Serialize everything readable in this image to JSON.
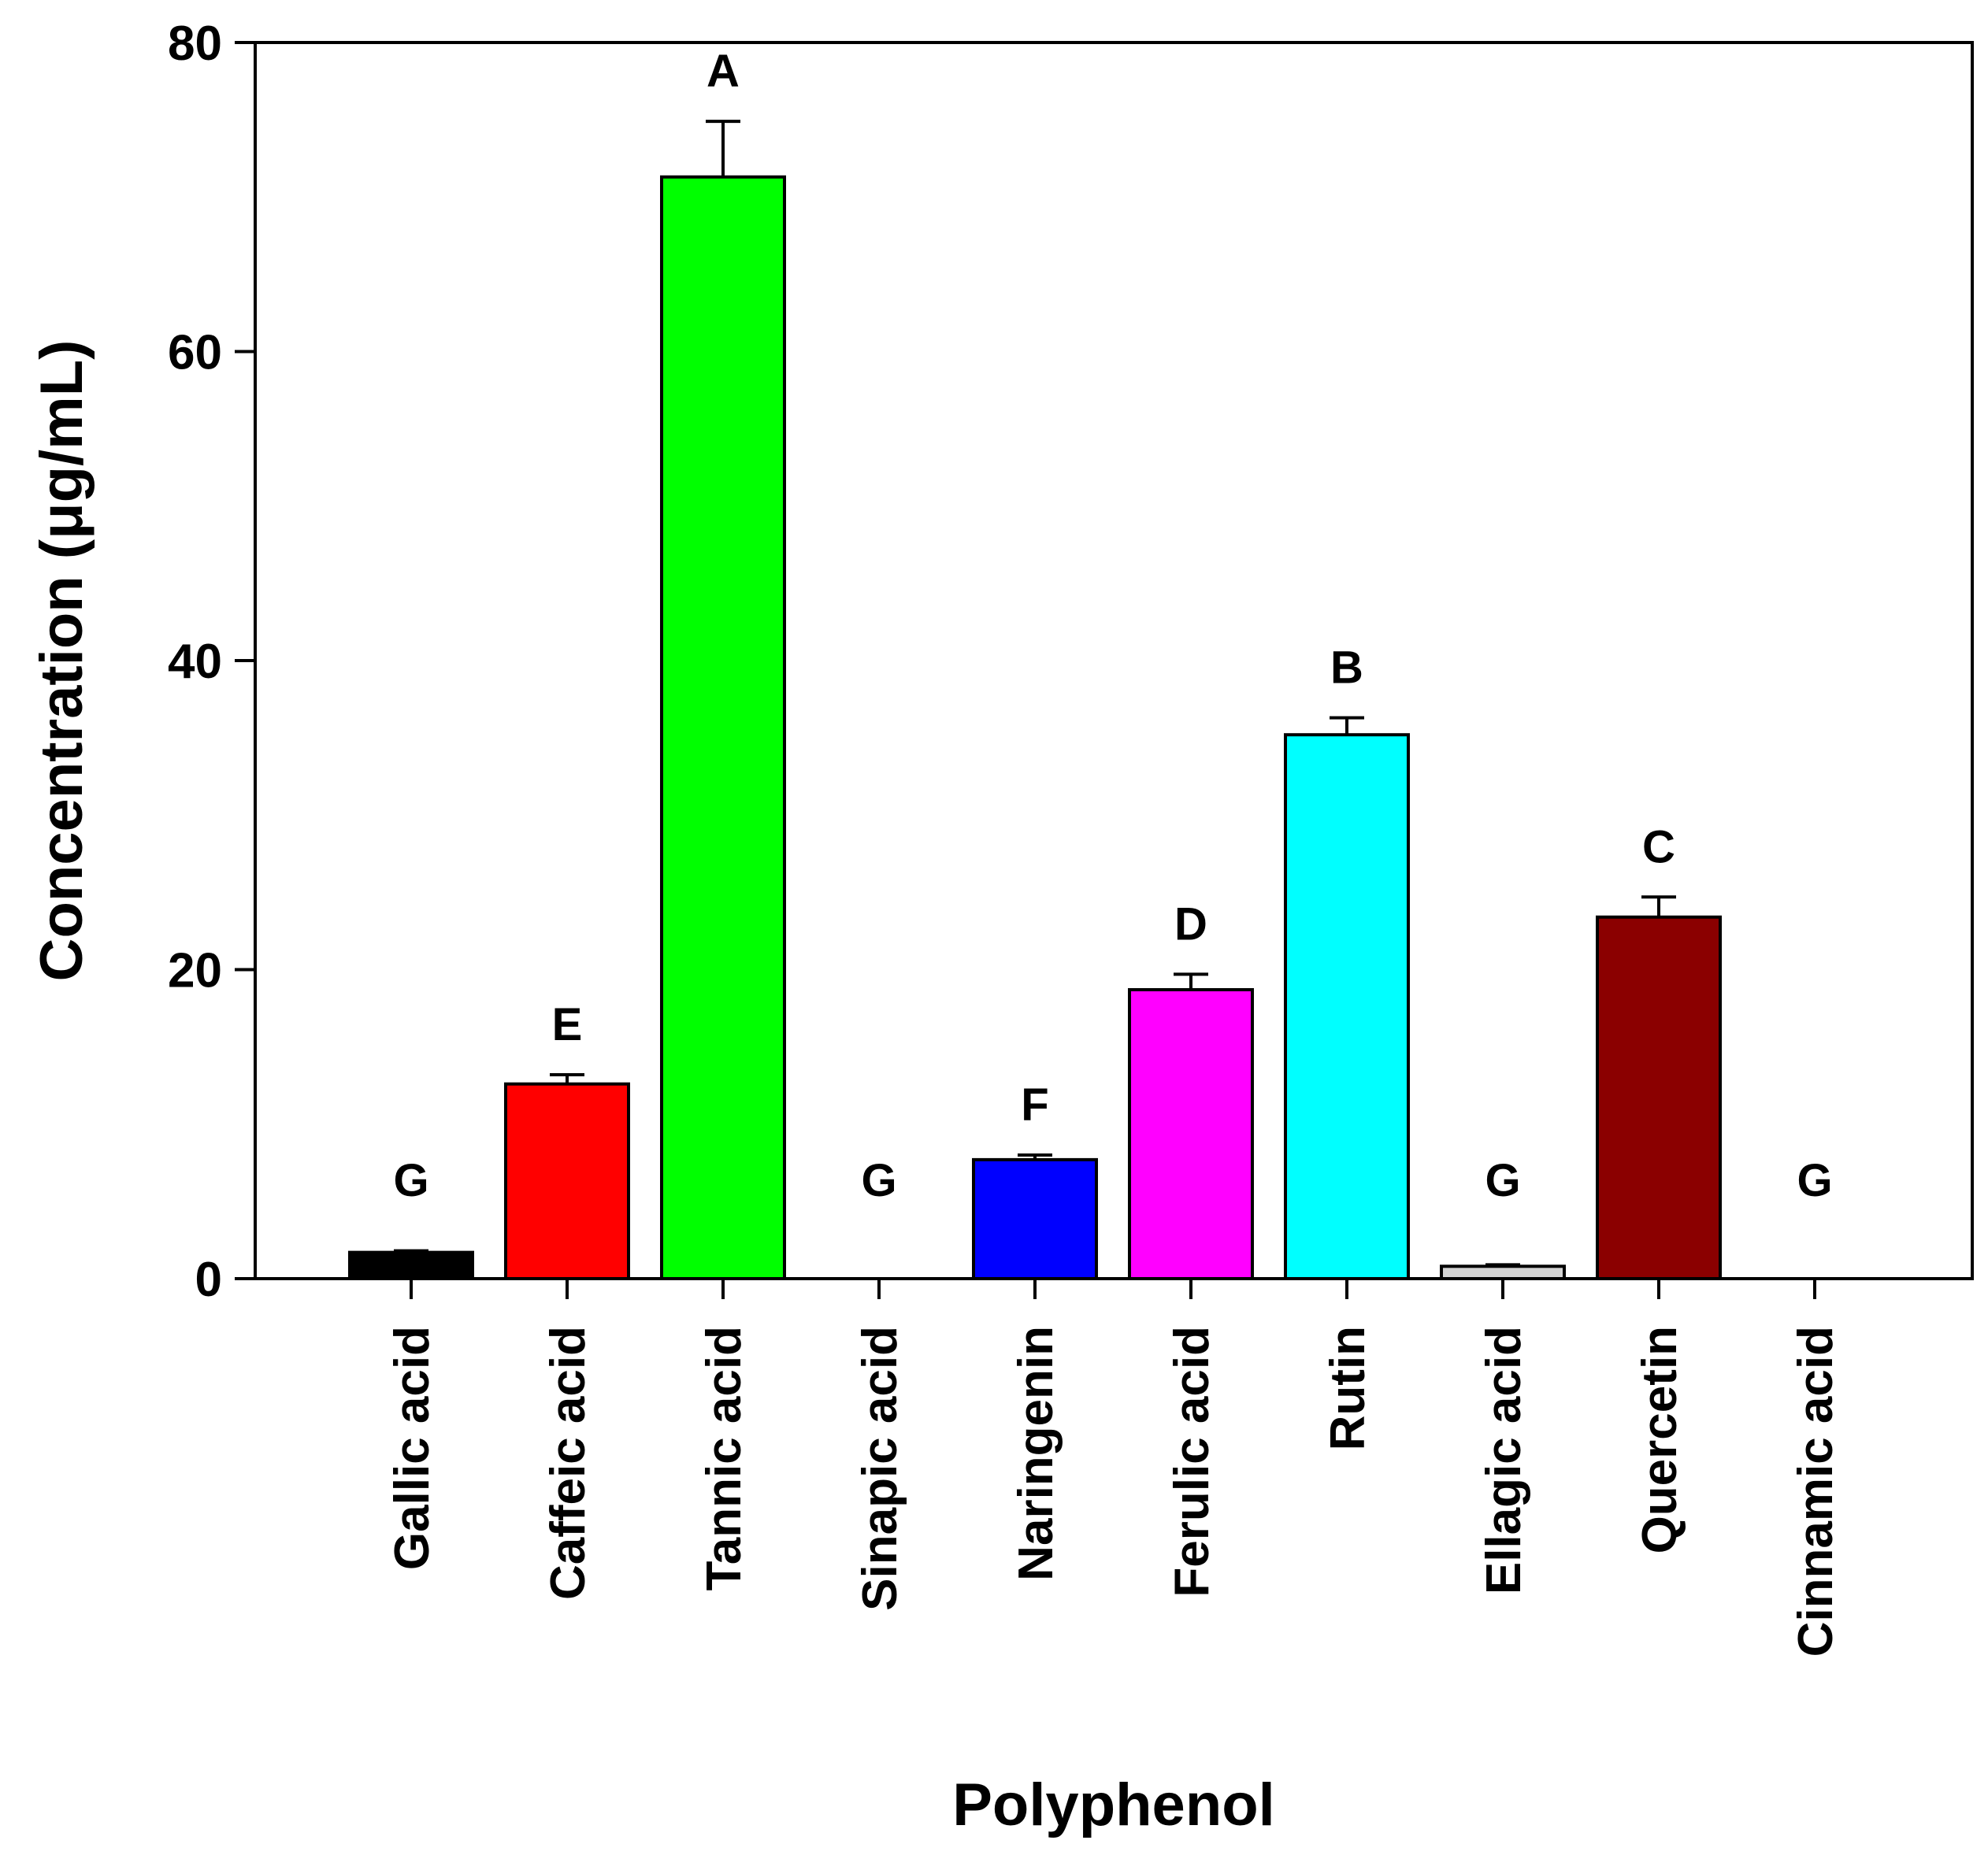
{
  "chart_data": {
    "type": "bar",
    "title": "",
    "xlabel": "Polyphenol",
    "ylabel": "Concentration (μg/mL)",
    "ylim": [
      0,
      80
    ],
    "yticks": [
      "0",
      "20",
      "40",
      "60",
      "80"
    ],
    "grid": false,
    "legend": "none",
    "categories": [
      "Gallic acid",
      "Caffeic acid",
      "Tannic acid",
      "Sinapic acid",
      "Naringenin",
      "Ferulic acid",
      "Rutin",
      "Ellagic acid",
      "Quercetin",
      "Cinnamic acid"
    ],
    "values": [
      1.7,
      12.6,
      71.3,
      0,
      7.7,
      18.7,
      35.2,
      0.8,
      23.4,
      0
    ],
    "errors": [
      0.1,
      0.6,
      3.6,
      0,
      0.3,
      1.0,
      1.1,
      0.1,
      1.3,
      0
    ],
    "significance": [
      "G",
      "E",
      "A",
      "G",
      "F",
      "D",
      "B",
      "G",
      "C",
      "G"
    ],
    "colors": [
      "#000000",
      "#ff0000",
      "#00ff00",
      "#ffffff",
      "#0000ff",
      "#ff00ff",
      "#00ffff",
      "#d3d3d3",
      "#8b0000",
      "#ffffff"
    ]
  }
}
